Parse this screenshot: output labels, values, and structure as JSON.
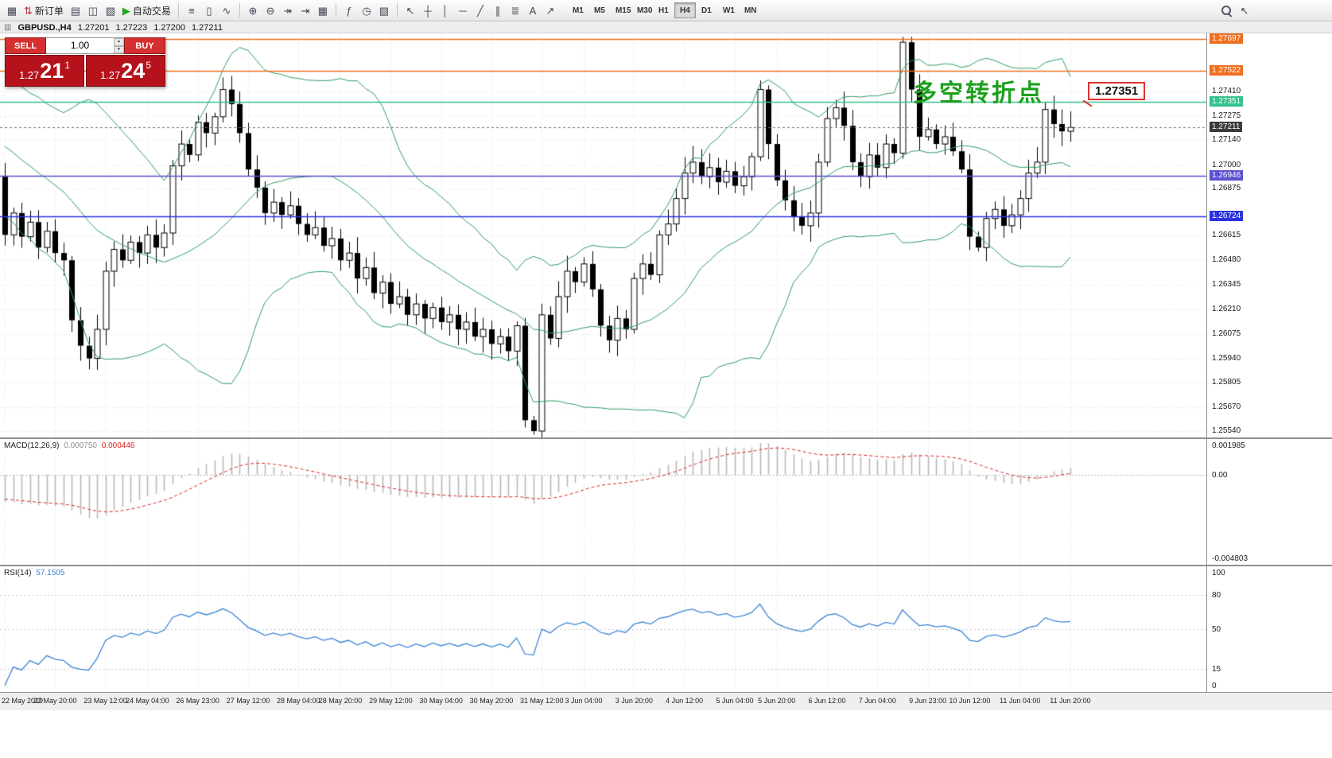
{
  "toolbar": {
    "groups": [
      {
        "items": [
          {
            "name": "new-chart-button",
            "icon": "▦"
          },
          {
            "name": "new-order-button",
            "icon": "⇅",
            "label": "新订单",
            "icon_color": "#b03030"
          },
          {
            "name": "profiles-button",
            "icon": "▤"
          },
          {
            "name": "data-window-button",
            "icon": "◫"
          },
          {
            "name": "navigator-button",
            "icon": "▧"
          },
          {
            "name": "auto-trading-button",
            "icon": "▶",
            "label": "自动交易",
            "icon_color": "#1fa51f"
          }
        ]
      },
      {
        "items": [
          {
            "name": "bar-chart-button",
            "icon": "≡"
          },
          {
            "name": "candlestick-chart-button",
            "icon": "▯"
          },
          {
            "name": "line-chart-button",
            "icon": "∿"
          }
        ]
      },
      {
        "items": [
          {
            "name": "zoom-in-button",
            "icon": "⊕"
          },
          {
            "name": "zoom-out-button",
            "icon": "⊖"
          },
          {
            "name": "auto-scroll-button",
            "icon": "↠"
          },
          {
            "name": "chart-shift-button",
            "icon": "⇥"
          },
          {
            "name": "grid-button",
            "icon": "▦"
          }
        ]
      },
      {
        "items": [
          {
            "name": "indicators-button",
            "icon": "ƒ"
          },
          {
            "name": "periods-dropdown-button",
            "icon": "◷"
          },
          {
            "name": "templates-button",
            "icon": "▨"
          }
        ]
      },
      {
        "items": [
          {
            "name": "cursor-button",
            "icon": "↖"
          },
          {
            "name": "crosshair-button",
            "icon": "┼"
          },
          {
            "name": "vertical-line-button",
            "icon": "│"
          },
          {
            "name": "horizontal-line-button",
            "icon": "─"
          },
          {
            "name": "trendline-button",
            "icon": "╱"
          },
          {
            "name": "equidistant-channel-button",
            "icon": "∥"
          },
          {
            "name": "fibonacci-button",
            "icon": "≣"
          },
          {
            "name": "text-label-button",
            "icon": "A"
          },
          {
            "name": "arrow-objects-button",
            "icon": "↗"
          }
        ]
      }
    ],
    "timeframes": [
      {
        "name": "timeframe-m1-button",
        "label": "M1"
      },
      {
        "name": "timeframe-m5-button",
        "label": "M5"
      },
      {
        "name": "timeframe-m15-button",
        "label": "M15"
      },
      {
        "name": "timeframe-m30-button",
        "label": "M30"
      },
      {
        "name": "timeframe-h1-button",
        "label": "H1"
      },
      {
        "name": "timeframe-h4-button",
        "label": "H4",
        "active": true
      },
      {
        "name": "timeframe-d1-button",
        "label": "D1"
      },
      {
        "name": "timeframe-w1-button",
        "label": "W1"
      },
      {
        "name": "timeframe-mn-button",
        "label": "MN"
      }
    ]
  },
  "chart_title": {
    "symbol": "GBPUSD.,H4",
    "open": "1.27201",
    "high": "1.27223",
    "low": "1.27200",
    "close": "1.27211"
  },
  "trade_panel": {
    "sell_label": "SELL",
    "buy_label": "BUY",
    "volume": "1.00",
    "sell_price": {
      "small": "1.27",
      "big": "21",
      "sup": "1"
    },
    "buy_price": {
      "small": "1.27",
      "big": "24",
      "sup": "5"
    }
  },
  "annotation": {
    "text": "多空转折点",
    "color": "#1ca01c"
  },
  "callout": {
    "text": "1.27351"
  },
  "macd": {
    "label": "MACD(12,26,9)",
    "value1": "0.000750",
    "value2": "0.000446",
    "axis": [
      "0.001985",
      "0.00",
      "-0.004803"
    ]
  },
  "rsi": {
    "label": "RSI(14)",
    "value": "57.1505",
    "levels": [
      100,
      80,
      50,
      15,
      0
    ]
  },
  "price_axis": [
    {
      "text": "1.27697",
      "price": 1.27697,
      "type": "orange",
      "line": "solid"
    },
    {
      "text": "1.27522",
      "price": 1.27522,
      "type": "orange",
      "line": "solid"
    },
    {
      "text": "1.27410",
      "price": 1.2741,
      "type": "plain"
    },
    {
      "text": "1.27351",
      "price": 1.27351,
      "type": "green",
      "line": "solid"
    },
    {
      "text": "1.27275",
      "price": 1.27275,
      "type": "plain"
    },
    {
      "text": "1.27211",
      "price": 1.27211,
      "type": "current",
      "line": "dashed"
    },
    {
      "text": "1.27140",
      "price": 1.2714,
      "type": "plain"
    },
    {
      "text": "1.27000",
      "price": 1.27,
      "type": "plain"
    },
    {
      "text": "1.26946",
      "price": 1.26946,
      "type": "blue1",
      "line": "solid"
    },
    {
      "text": "1.26875",
      "price": 1.26875,
      "type": "plain"
    },
    {
      "text": "1.26724",
      "price": 1.26724,
      "type": "blue2",
      "line": "solid"
    },
    {
      "text": "1.26615",
      "price": 1.26615,
      "type": "plain"
    },
    {
      "text": "1.26480",
      "price": 1.2648,
      "type": "plain"
    },
    {
      "text": "1.26345",
      "price": 1.26345,
      "type": "plain"
    },
    {
      "text": "1.26210",
      "price": 1.2621,
      "type": "plain"
    },
    {
      "text": "1.26075",
      "price": 1.26075,
      "type": "plain"
    },
    {
      "text": "1.25940",
      "price": 1.2594,
      "type": "plain"
    },
    {
      "text": "1.25805",
      "price": 1.25805,
      "type": "plain"
    },
    {
      "text": "1.25670",
      "price": 1.2567,
      "type": "plain"
    },
    {
      "text": "1.25540",
      "price": 1.2554,
      "type": "plain"
    }
  ],
  "time_axis": [
    "22 May 2019",
    "22 May 20:00",
    "23 May 12:00",
    "24 May 04:00",
    "26 May 23:00",
    "27 May 12:00",
    "28 May 04:00",
    "28 May 20:00",
    "29 May 12:00",
    "30 May 04:00",
    "30 May 20:00",
    "31 May 12:00",
    "3 Jun 04:00",
    "3 Jun 20:00",
    "4 Jun 12:00",
    "5 Jun 04:00",
    "5 Jun 20:00",
    "6 Jun 12:00",
    "7 Jun 04:00",
    "9 Jun 23:00",
    "10 Jun 12:00",
    "11 Jun 04:00",
    "11 Jun 20:00"
  ],
  "colors": {
    "bull_body": "#ffffff",
    "bear_body": "#000000",
    "candle_outline": "#000000",
    "bollinger": "#2f9e63",
    "macd_histogram": "#b8b8b8",
    "macd_signal": "#dd2222",
    "rsi_line": "#3d85d8",
    "grid": "#e7e7e7",
    "level_orange": "#ee6f1e",
    "level_green": "#35c18e",
    "level_blue1": "#5a52d0",
    "level_blue2": "#2b33dd",
    "current_price": "#707070"
  },
  "chart_data": {
    "type": "candlestick",
    "symbol": "GBPUSD",
    "period": "H4",
    "bollinger": {
      "period": 20,
      "deviation": 2
    },
    "macd": [
      12,
      26,
      9
    ],
    "rsi_period": 14,
    "warmup_closes": [
      1.278,
      1.2778,
      1.2776,
      1.2773,
      1.277,
      1.2767,
      1.2764,
      1.276,
      1.2756,
      1.2752,
      1.2748,
      1.2744,
      1.274,
      1.2736,
      1.2732,
      1.2728,
      1.2724,
      1.272,
      1.2716,
      1.2712,
      1.2709,
      1.2706,
      1.2704,
      1.2702,
      1.27,
      1.2698,
      1.2697,
      1.2696,
      1.2695,
      1.2694
    ],
    "closes": [
      1.2662,
      1.2674,
      1.2661,
      1.2669,
      1.2655,
      1.2664,
      1.2652,
      1.2648,
      1.2615,
      1.2601,
      1.2594,
      1.261,
      1.2642,
      1.2654,
      1.2648,
      1.2658,
      1.2652,
      1.2662,
      1.2655,
      1.2663,
      1.27,
      1.2712,
      1.2706,
      1.2724,
      1.2718,
      1.2727,
      1.2742,
      1.2734,
      1.2718,
      1.2698,
      1.2688,
      1.2674,
      1.268,
      1.2673,
      1.2678,
      1.2668,
      1.2662,
      1.2666,
      1.2656,
      1.266,
      1.2648,
      1.2652,
      1.2638,
      1.2644,
      1.263,
      1.2636,
      1.2624,
      1.2628,
      1.2618,
      1.2624,
      1.2616,
      1.2622,
      1.2614,
      1.2618,
      1.261,
      1.2614,
      1.2606,
      1.261,
      1.2602,
      1.2606,
      1.2598,
      1.2612,
      1.256,
      1.2554,
      1.2618,
      1.2605,
      1.2628,
      1.2642,
      1.2636,
      1.2646,
      1.2632,
      1.2612,
      1.2604,
      1.2616,
      1.261,
      1.2638,
      1.2646,
      1.264,
      1.2662,
      1.2668,
      1.2682,
      1.2696,
      1.2702,
      1.2694,
      1.2699,
      1.2691,
      1.2697,
      1.2689,
      1.2694,
      1.2705,
      1.2742,
      1.2712,
      1.2692,
      1.2681,
      1.2672,
      1.2667,
      1.2674,
      1.2702,
      1.2726,
      1.2732,
      1.2722,
      1.2702,
      1.2694,
      1.2706,
      1.2699,
      1.2712,
      1.2707,
      1.2768,
      1.2742,
      1.2716,
      1.272,
      1.2712,
      1.2716,
      1.2708,
      1.2698,
      1.2661,
      1.2655,
      1.2671,
      1.2676,
      1.2667,
      1.2673,
      1.2682,
      1.2696,
      1.2702,
      1.2731,
      1.2723,
      1.2719,
      1.27211
    ],
    "wick_high_overrides": {
      "90": 1.2747,
      "107": 1.2771
    },
    "wick_low_overrides": {
      "62": 1.2556,
      "63": 1.2552
    }
  }
}
